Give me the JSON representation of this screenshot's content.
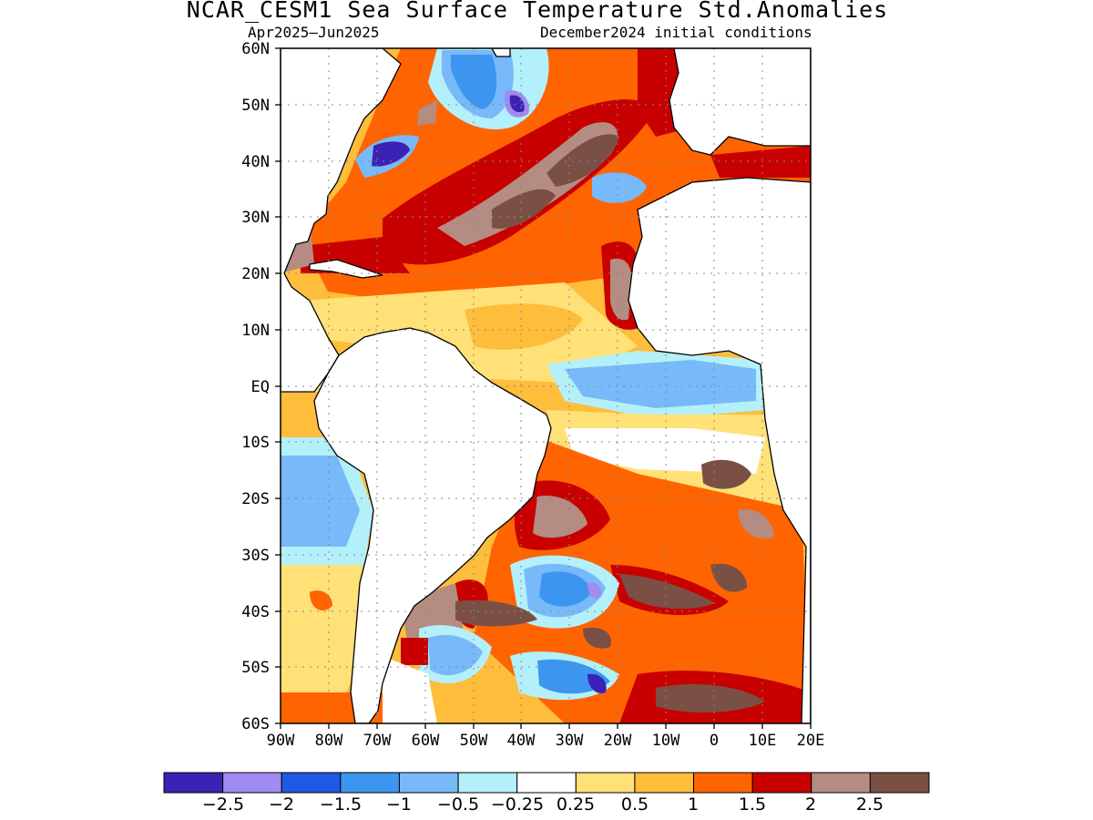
{
  "title": "NCAR_CESM1 Sea Surface Temperature Std.Anomalies",
  "subtitle_left": "Apr2025–Jun2025",
  "subtitle_right": "December2024 initial conditions",
  "map": {
    "region": "Atlantic Ocean",
    "lon_range": [
      -90,
      20
    ],
    "lat_range": [
      -60,
      60
    ],
    "lat_labels": [
      "60N",
      "50N",
      "40N",
      "30N",
      "20N",
      "10N",
      "EQ",
      "10S",
      "20S",
      "30S",
      "40S",
      "50S",
      "60S"
    ],
    "lon_labels": [
      "90W",
      "80W",
      "70W",
      "60W",
      "50W",
      "40W",
      "30W",
      "20W",
      "10W",
      "0",
      "10E",
      "20E"
    ],
    "land_color": "#ffffff",
    "grid": "dotted"
  },
  "colorbar": {
    "colors": [
      "#3c22b4",
      "#a08cf0",
      "#1e5ae6",
      "#3c96f0",
      "#78b9fa",
      "#b4f0fa",
      "#ffffff",
      "#ffe178",
      "#ffbd3c",
      "#ff6400",
      "#c80000",
      "#b48c82",
      "#7a5044"
    ],
    "labels": [
      "−2.5",
      "−2",
      "−1.5",
      "−1",
      "−0.5",
      "−0.25",
      "0.25",
      "0.5",
      "1",
      "1.5",
      "2",
      "2.5"
    ]
  }
}
